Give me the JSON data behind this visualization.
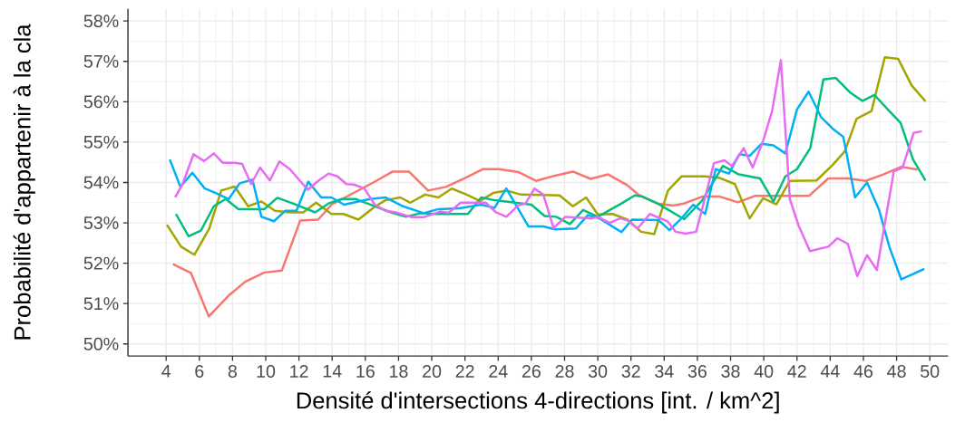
{
  "chart_data": {
    "type": "line",
    "xlabel": "Densité d'intersections 4-directions [int. / km^2]",
    "ylabel": "Probabilité d'appartenir à la cla",
    "xlim": [
      1.7,
      51.1
    ],
    "ylim": [
      49.7,
      58.3
    ],
    "xticks": [
      4,
      6,
      8,
      10,
      12,
      14,
      16,
      18,
      20,
      22,
      24,
      26,
      28,
      30,
      32,
      34,
      36,
      38,
      40,
      42,
      44,
      46,
      48,
      50
    ],
    "yticks": [
      {
        "value": 50,
        "label": "50%"
      },
      {
        "value": 51,
        "label": "51%"
      },
      {
        "value": 52,
        "label": "52%"
      },
      {
        "value": 53,
        "label": "53%"
      },
      {
        "value": 54,
        "label": "54%"
      },
      {
        "value": 55,
        "label": "55%"
      },
      {
        "value": 56,
        "label": "56%"
      },
      {
        "value": 57,
        "label": "57%"
      },
      {
        "value": 58,
        "label": "58%"
      }
    ],
    "grid": true,
    "series": [
      {
        "color": "#f8766d",
        "x": [
          4.41,
          5.49,
          6.57,
          7.77,
          8.76,
          9.92,
          10.97,
          12.08,
          13.16,
          13.96,
          16.48,
          17.65,
          18.62,
          19.78,
          20.85,
          22.0,
          23.07,
          24.05,
          25.21,
          26.28,
          27.43,
          28.5,
          29.57,
          30.63,
          31.79,
          32.5,
          33.57,
          34.55,
          35.2,
          36.3,
          37.36,
          38.44,
          39.5,
          40.76,
          42.73,
          43.89,
          45.06,
          46.13,
          47.2,
          48.28,
          49.26
        ],
        "values": [
          51.98,
          51.76,
          50.68,
          51.2,
          51.54,
          51.77,
          51.82,
          53.06,
          53.08,
          53.45,
          54.0,
          54.27,
          54.27,
          53.8,
          53.89,
          54.11,
          54.33,
          54.33,
          54.26,
          54.04,
          54.17,
          54.27,
          54.09,
          54.2,
          53.93,
          53.68,
          53.48,
          53.43,
          53.48,
          53.65,
          53.65,
          53.51,
          53.67,
          53.67,
          53.67,
          54.1,
          54.1,
          54.04,
          54.2,
          54.39,
          54.32
        ]
      },
      {
        "color": "#a3a500",
        "x": [
          4.05,
          4.9,
          5.7,
          6.6,
          7.32,
          8.13,
          8.94,
          9.74,
          10.55,
          11.45,
          12.26,
          13.03,
          13.96,
          14.68,
          15.58,
          16.48,
          17.2,
          18.1,
          18.71,
          19.6,
          20.4,
          21.2,
          22.1,
          22.9,
          23.7,
          24.5,
          25.38,
          27.7,
          28.5,
          29.3,
          30.0,
          30.9,
          31.79,
          32.6,
          33.4,
          34.23,
          35.04,
          36.47,
          37.36,
          38.26,
          39.15,
          39.96,
          40.76,
          41.57,
          43.18,
          44.16,
          44.88,
          45.59,
          46.49,
          47.29,
          48.1,
          48.9,
          49.74
        ],
        "values": [
          52.95,
          52.41,
          52.21,
          52.86,
          53.8,
          53.9,
          53.41,
          53.53,
          53.3,
          53.26,
          53.26,
          53.5,
          53.22,
          53.22,
          53.08,
          53.37,
          53.56,
          53.63,
          53.5,
          53.7,
          53.63,
          53.85,
          53.7,
          53.54,
          53.74,
          53.8,
          53.7,
          53.68,
          53.41,
          53.63,
          53.21,
          53.22,
          53.08,
          52.78,
          52.72,
          53.8,
          54.15,
          54.15,
          54.11,
          53.96,
          53.11,
          53.61,
          53.46,
          54.04,
          54.05,
          54.44,
          54.77,
          55.58,
          55.77,
          57.1,
          57.06,
          56.41,
          56.01
        ]
      },
      {
        "color": "#00bf7d",
        "x": [
          4.59,
          5.35,
          6.1,
          6.87,
          7.59,
          8.36,
          9.12,
          9.92,
          10.7,
          11.63,
          12.98,
          13.78,
          14.59,
          15.4,
          16.12,
          17.55,
          18.45,
          19.33,
          20.22,
          22.18,
          22.98,
          23.78,
          25.03,
          26.0,
          26.8,
          27.5,
          28.32,
          29.12,
          30.0,
          31.43,
          32.23,
          32.7,
          33.6,
          35.2,
          36.3,
          37.54,
          38.5,
          39.78,
          40.58,
          41.3,
          42.0,
          42.8,
          43.59,
          44.34,
          45.23,
          45.95,
          46.66,
          47.47,
          48.24,
          48.99,
          49.74
        ],
        "values": [
          53.22,
          52.67,
          52.81,
          53.41,
          53.59,
          53.34,
          53.34,
          53.34,
          53.62,
          53.48,
          53.26,
          53.48,
          53.59,
          53.59,
          53.48,
          53.26,
          53.15,
          53.24,
          53.22,
          53.22,
          53.63,
          53.56,
          53.5,
          53.45,
          53.17,
          53.15,
          52.97,
          53.32,
          53.15,
          53.48,
          53.68,
          53.65,
          53.48,
          53.09,
          53.56,
          54.41,
          54.2,
          54.1,
          53.53,
          54.15,
          54.33,
          54.85,
          56.55,
          56.59,
          56.22,
          56.02,
          56.17,
          55.81,
          55.48,
          54.57,
          54.05
        ]
      },
      {
        "color": "#00b0f6",
        "x": [
          4.22,
          4.86,
          5.58,
          6.33,
          6.99,
          7.77,
          8.43,
          9.2,
          9.74,
          10.5,
          11.18,
          11.85,
          12.56,
          13.34,
          13.96,
          14.72,
          15.58,
          16.3,
          17.2,
          18.27,
          19.51,
          20.4,
          21.65,
          22.98,
          23.78,
          24.49,
          25.83,
          26.72,
          27.43,
          28.68,
          29.4,
          30.1,
          31.43,
          32.06,
          33.66,
          34.32,
          35.04,
          35.75,
          36.47,
          37.1,
          37.9,
          38.53,
          39.15,
          39.87,
          40.58,
          41.3,
          42.0,
          42.7,
          43.45,
          44.16,
          44.79,
          45.5,
          46.22,
          46.93,
          47.56,
          48.28,
          48.99,
          49.67
        ],
        "values": [
          54.57,
          53.89,
          54.24,
          53.85,
          53.74,
          53.59,
          53.98,
          54.07,
          53.15,
          53.04,
          53.3,
          53.3,
          54.02,
          53.63,
          53.63,
          53.45,
          53.53,
          53.59,
          53.63,
          53.41,
          53.24,
          53.34,
          53.36,
          53.45,
          53.37,
          53.85,
          52.91,
          52.91,
          52.84,
          52.86,
          53.19,
          53.11,
          52.77,
          53.08,
          53.07,
          52.82,
          53.11,
          53.45,
          53.22,
          54.33,
          54.22,
          54.7,
          54.66,
          54.96,
          54.92,
          54.72,
          55.81,
          56.25,
          55.62,
          55.33,
          55.13,
          53.63,
          54.0,
          53.34,
          52.41,
          51.6,
          51.73,
          51.86
        ]
      },
      {
        "color": "#e76bf3",
        "x": [
          4.54,
          4.99,
          5.65,
          6.28,
          6.87,
          7.41,
          8.13,
          8.58,
          9.12,
          9.66,
          10.25,
          10.82,
          11.45,
          12.53,
          13.16,
          13.78,
          14.32,
          14.86,
          15.31,
          15.94,
          16.57,
          17.2,
          17.83,
          18.8,
          19.51,
          20.49,
          21.02,
          21.74,
          23.25,
          23.87,
          24.49,
          25.2,
          25.65,
          26.19,
          26.72,
          27.34,
          28.05,
          29.65,
          30.0,
          30.72,
          31.35,
          31.79,
          32.4,
          33.14,
          34.2,
          34.68,
          35.3,
          35.93,
          37.0,
          37.63,
          38.08,
          38.79,
          39.33,
          39.96,
          40.5,
          41.03,
          41.57,
          42.1,
          42.78,
          43.89,
          44.43,
          45.06,
          45.63,
          46.22,
          46.81,
          47.83,
          48.36,
          49.03,
          49.53
        ],
        "values": [
          53.63,
          53.96,
          54.7,
          54.53,
          54.72,
          54.49,
          54.49,
          54.46,
          53.96,
          54.37,
          54.05,
          54.52,
          54.33,
          53.82,
          54.04,
          54.22,
          54.15,
          53.96,
          53.95,
          53.85,
          53.45,
          53.3,
          53.26,
          53.14,
          53.14,
          53.28,
          53.25,
          53.5,
          53.5,
          53.26,
          53.15,
          53.43,
          53.48,
          53.85,
          53.7,
          52.87,
          53.15,
          53.11,
          53.15,
          53.0,
          53.11,
          53.06,
          52.86,
          53.22,
          53.04,
          52.78,
          52.73,
          52.78,
          54.48,
          54.55,
          54.41,
          54.85,
          54.37,
          55.03,
          55.77,
          57.03,
          53.59,
          52.93,
          52.3,
          52.41,
          52.62,
          52.48,
          51.68,
          52.2,
          51.83,
          54.27,
          54.37,
          55.23,
          55.27
        ]
      }
    ]
  }
}
